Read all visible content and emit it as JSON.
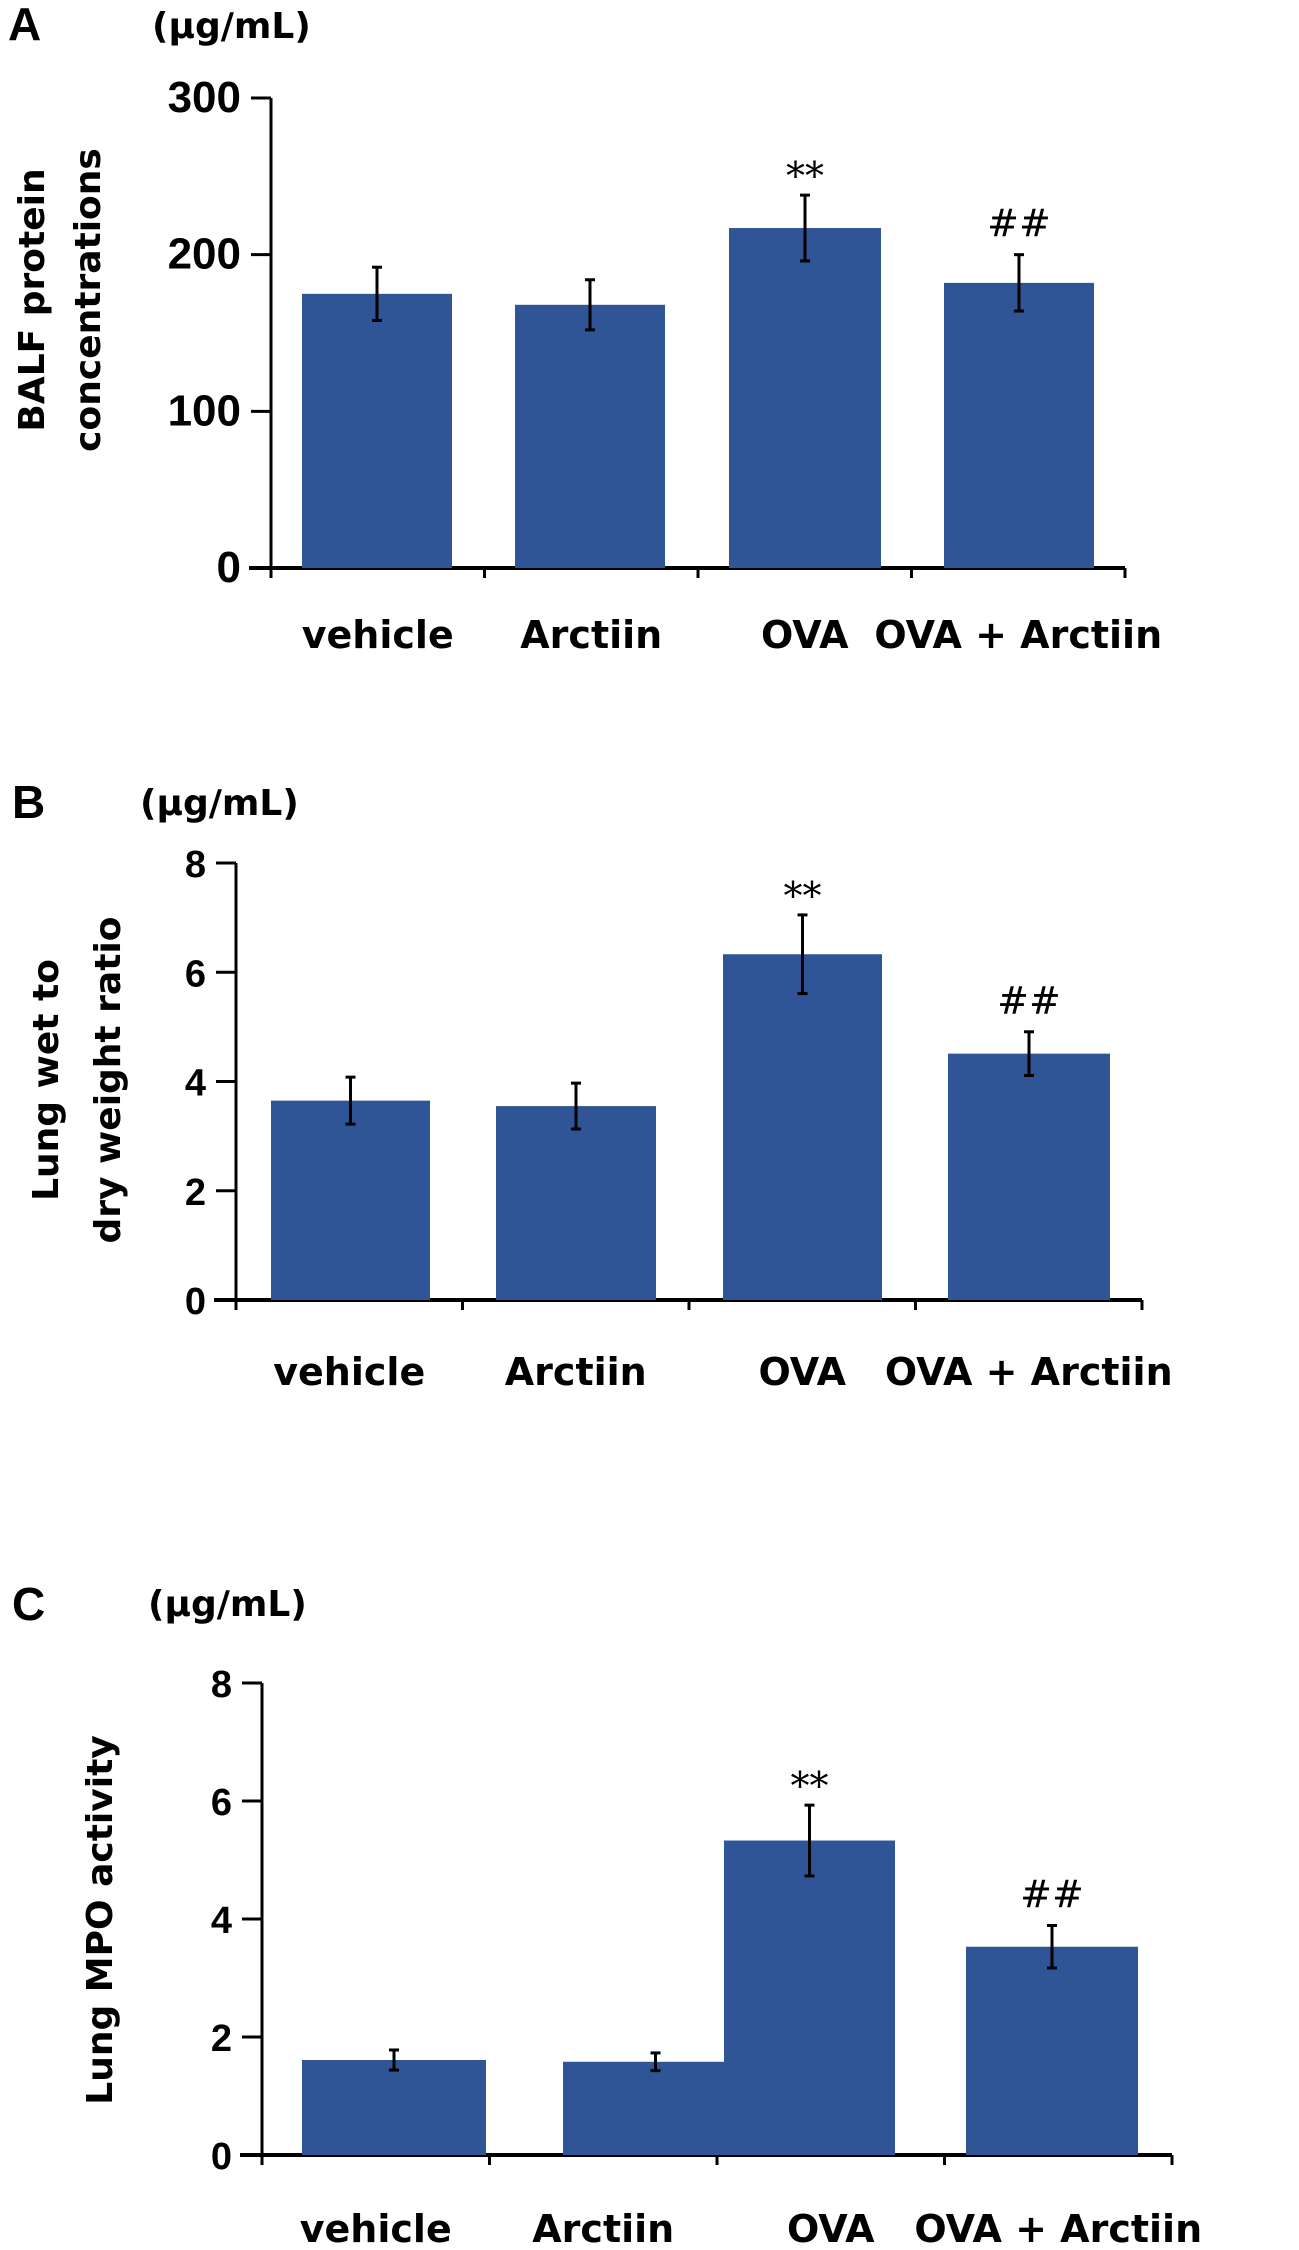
{
  "colors": {
    "bar": "#2f5597",
    "axis": "#000000",
    "text": "#000000"
  },
  "chart_data": [
    {
      "panel": "A",
      "type": "bar",
      "unit": "(µg/mL)",
      "ylabel": [
        "BALF protein",
        "concentrations"
      ],
      "xlabel": "",
      "categories": [
        "vehicle",
        "Arctiin",
        "OVA",
        "OVA + Arctiin"
      ],
      "values": [
        175,
        168,
        217,
        182
      ],
      "errors": [
        17,
        16,
        21,
        18
      ],
      "annotations": [
        "",
        "",
        "**",
        "##"
      ],
      "ylim": [
        0,
        300
      ],
      "yticks": [
        0,
        100,
        200,
        300
      ],
      "grid": false
    },
    {
      "panel": "B",
      "type": "bar",
      "unit": "(µg/mL)",
      "ylabel": [
        "Lung wet to",
        "dry weight ratio"
      ],
      "xlabel": "",
      "categories": [
        "vehicle",
        "Arctiin",
        "OVA",
        "OVA + Arctiin"
      ],
      "values": [
        3.65,
        3.55,
        6.33,
        4.51
      ],
      "errors": [
        0.43,
        0.42,
        0.72,
        0.4
      ],
      "annotations": [
        "",
        "",
        "**",
        "##"
      ],
      "ylim": [
        0,
        8
      ],
      "yticks": [
        0,
        2,
        4,
        6,
        8
      ],
      "grid": false
    },
    {
      "panel": "C",
      "type": "bar",
      "unit": "(µg/mL)",
      "ylabel": [
        "Lung MPO activity"
      ],
      "xlabel": "",
      "categories": [
        "vehicle",
        "Arctiin",
        "OVA",
        "OVA + Arctiin"
      ],
      "values": [
        1.61,
        1.58,
        5.33,
        3.53
      ],
      "errors": [
        0.17,
        0.15,
        0.6,
        0.36
      ],
      "annotations": [
        "",
        "",
        "**",
        "##"
      ],
      "ylim": [
        0,
        8
      ],
      "yticks": [
        0,
        2,
        4,
        6,
        8
      ],
      "grid": false
    }
  ]
}
